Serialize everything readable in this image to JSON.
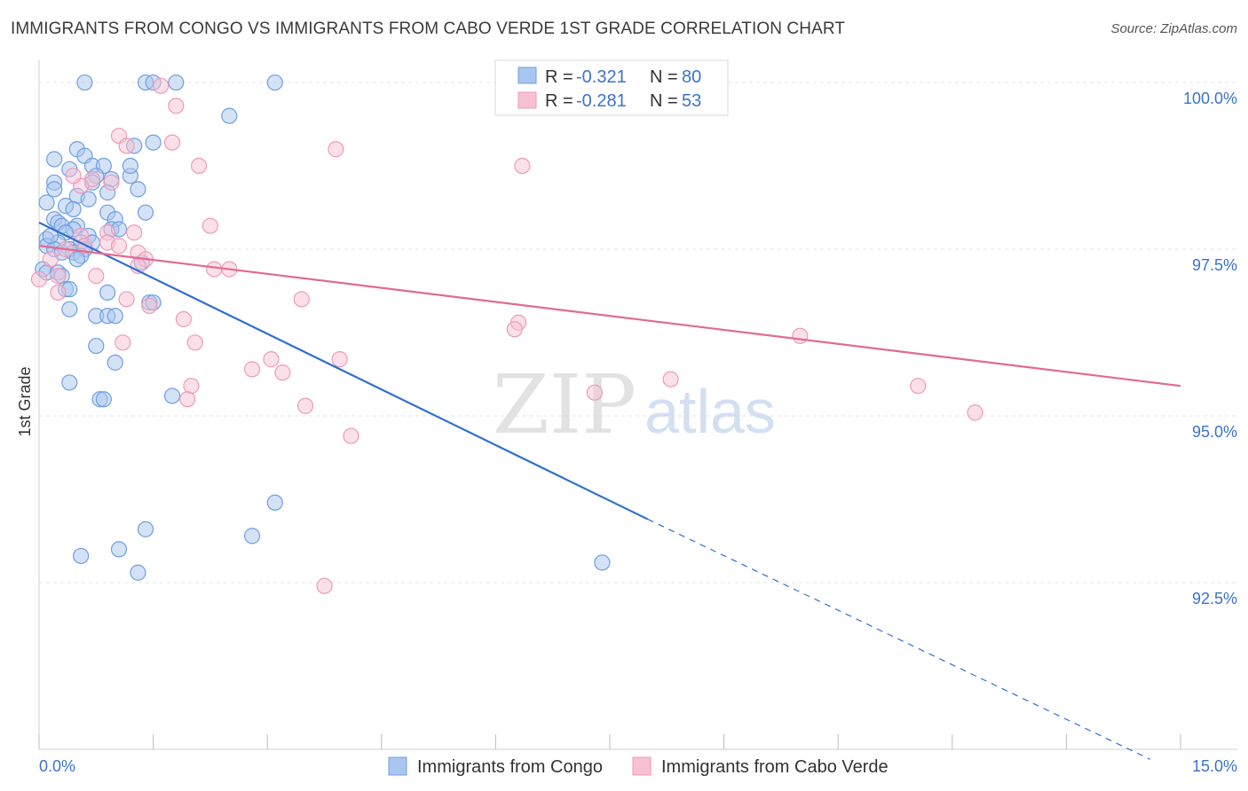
{
  "header": {
    "title": "IMMIGRANTS FROM CONGO VS IMMIGRANTS FROM CABO VERDE 1ST GRADE CORRELATION CHART",
    "source": "Source: ZipAtlas.com"
  },
  "watermark": {
    "zip": "ZIP",
    "atlas": "atlas"
  },
  "chart_data": {
    "type": "scatter",
    "title": "IMMIGRANTS FROM CONGO VS IMMIGRANTS FROM CABO VERDE 1ST GRADE CORRELATION CHART",
    "xlabel": "",
    "ylabel": "1st Grade",
    "xlim": [
      0,
      15
    ],
    "ylim": [
      90,
      100.2
    ],
    "x_tick_labels": [
      "0.0%",
      "15.0%"
    ],
    "y_ticks": [
      92.5,
      95.0,
      97.5,
      100.0
    ],
    "y_tick_labels": [
      "92.5%",
      "95.0%",
      "97.5%",
      "100.0%"
    ],
    "grid": true,
    "legend_placement": "top-center",
    "stats_legend": [
      {
        "r_label": "R =",
        "r_value": "-0.321",
        "n_label": "N =",
        "n_value": "80"
      },
      {
        "r_label": "R =",
        "r_value": "-0.281",
        "n_label": "N =",
        "n_value": "53"
      }
    ],
    "series": [
      {
        "name": "Immigrants from Congo",
        "color": "#6f9fdf",
        "fill": "#a9c6f0",
        "line_color": "#2f6fd0",
        "trend": {
          "x0": 0.0,
          "y0": 97.9,
          "x1": 8.0,
          "y1": 93.45,
          "dash_x1": 14.6,
          "dash_y1": 89.85
        },
        "points": [
          [
            0.6,
            100
          ],
          [
            1.4,
            100
          ],
          [
            1.5,
            100
          ],
          [
            1.8,
            100
          ],
          [
            3.1,
            100
          ],
          [
            2.5,
            99.5
          ],
          [
            1.5,
            99.1
          ],
          [
            1.25,
            99.05
          ],
          [
            0.5,
            99
          ],
          [
            0.6,
            98.9
          ],
          [
            0.2,
            98.85
          ],
          [
            0.7,
            98.75
          ],
          [
            0.85,
            98.75
          ],
          [
            0.4,
            98.7
          ],
          [
            0.75,
            98.6
          ],
          [
            1.2,
            98.6
          ],
          [
            0.95,
            98.55
          ],
          [
            0.2,
            98.5
          ],
          [
            0.7,
            98.5
          ],
          [
            0.2,
            98.4
          ],
          [
            1.3,
            98.4
          ],
          [
            0.9,
            98.35
          ],
          [
            0.5,
            98.3
          ],
          [
            0.1,
            98.2
          ],
          [
            0.35,
            98.15
          ],
          [
            0.45,
            98.1
          ],
          [
            0.9,
            98.05
          ],
          [
            1.4,
            98.05
          ],
          [
            0.2,
            97.95
          ],
          [
            1.0,
            97.95
          ],
          [
            0.25,
            97.9
          ],
          [
            0.3,
            97.85
          ],
          [
            0.5,
            97.85
          ],
          [
            0.45,
            97.8
          ],
          [
            0.95,
            97.8
          ],
          [
            1.05,
            97.8
          ],
          [
            0.35,
            97.75
          ],
          [
            0.65,
            97.7
          ],
          [
            0.1,
            97.65
          ],
          [
            0.25,
            97.6
          ],
          [
            0.55,
            97.6
          ],
          [
            0.7,
            97.6
          ],
          [
            0.1,
            97.55
          ],
          [
            0.2,
            97.5
          ],
          [
            0.4,
            97.5
          ],
          [
            0.6,
            97.5
          ],
          [
            0.3,
            97.45
          ],
          [
            0.45,
            97.45
          ],
          [
            0.55,
            97.4
          ],
          [
            0.05,
            97.2
          ],
          [
            0.1,
            97.15
          ],
          [
            0.25,
            97.15
          ],
          [
            0.3,
            97.1
          ],
          [
            1.35,
            97.3
          ],
          [
            0.35,
            96.9
          ],
          [
            0.4,
            96.9
          ],
          [
            0.9,
            96.85
          ],
          [
            1.45,
            96.7
          ],
          [
            1.5,
            96.7
          ],
          [
            0.4,
            96.6
          ],
          [
            0.75,
            96.5
          ],
          [
            0.9,
            96.5
          ],
          [
            1.0,
            96.5
          ],
          [
            0.75,
            96.05
          ],
          [
            1.0,
            95.8
          ],
          [
            0.4,
            95.5
          ],
          [
            0.8,
            95.25
          ],
          [
            0.85,
            95.25
          ],
          [
            1.75,
            95.3
          ],
          [
            3.1,
            93.7
          ],
          [
            1.4,
            93.3
          ],
          [
            2.8,
            93.2
          ],
          [
            1.05,
            93
          ],
          [
            0.55,
            92.9
          ],
          [
            1.3,
            92.65
          ],
          [
            7.4,
            92.8
          ],
          [
            0.15,
            97.7
          ],
          [
            0.5,
            97.35
          ],
          [
            1.2,
            98.75
          ],
          [
            0.65,
            98.25
          ]
        ]
      },
      {
        "name": "Immigrants from Cabo Verde",
        "color": "#ee9ab8",
        "fill": "#f7c1d3",
        "line_color": "#e06a94",
        "trend": {
          "x0": 0.0,
          "y0": 97.55,
          "x1": 15.0,
          "y1": 95.45
        },
        "points": [
          [
            1.6,
            99.95
          ],
          [
            7.4,
            100.05
          ],
          [
            1.8,
            99.65
          ],
          [
            1.05,
            99.2
          ],
          [
            1.75,
            99.1
          ],
          [
            1.15,
            99.05
          ],
          [
            3.9,
            99.0
          ],
          [
            6.35,
            98.75
          ],
          [
            2.1,
            98.75
          ],
          [
            0.7,
            98.55
          ],
          [
            0.95,
            98.5
          ],
          [
            0.55,
            98.45
          ],
          [
            2.25,
            97.85
          ],
          [
            1.25,
            97.75
          ],
          [
            0.9,
            97.75
          ],
          [
            0.55,
            97.7
          ],
          [
            0.9,
            97.6
          ],
          [
            0.6,
            97.55
          ],
          [
            0.35,
            97.5
          ],
          [
            1.3,
            97.45
          ],
          [
            1.4,
            97.35
          ],
          [
            1.3,
            97.25
          ],
          [
            2.3,
            97.2
          ],
          [
            2.5,
            97.2
          ],
          [
            0.75,
            97.1
          ],
          [
            0.25,
            97.1
          ],
          [
            0.0,
            97.05
          ],
          [
            1.15,
            96.75
          ],
          [
            3.45,
            96.75
          ],
          [
            1.45,
            96.65
          ],
          [
            1.9,
            96.45
          ],
          [
            6.3,
            96.4
          ],
          [
            6.25,
            96.3
          ],
          [
            10.0,
            96.2
          ],
          [
            1.1,
            96.1
          ],
          [
            3.95,
            95.85
          ],
          [
            3.05,
            95.85
          ],
          [
            2.8,
            95.7
          ],
          [
            3.2,
            95.65
          ],
          [
            8.3,
            95.55
          ],
          [
            2.0,
            95.45
          ],
          [
            11.55,
            95.45
          ],
          [
            7.3,
            95.35
          ],
          [
            1.95,
            95.25
          ],
          [
            3.5,
            95.15
          ],
          [
            12.3,
            95.05
          ],
          [
            4.1,
            94.7
          ],
          [
            3.75,
            92.45
          ],
          [
            0.15,
            97.35
          ],
          [
            0.25,
            96.85
          ],
          [
            2.05,
            96.1
          ],
          [
            0.45,
            98.6
          ],
          [
            1.05,
            97.55
          ]
        ]
      }
    ]
  }
}
